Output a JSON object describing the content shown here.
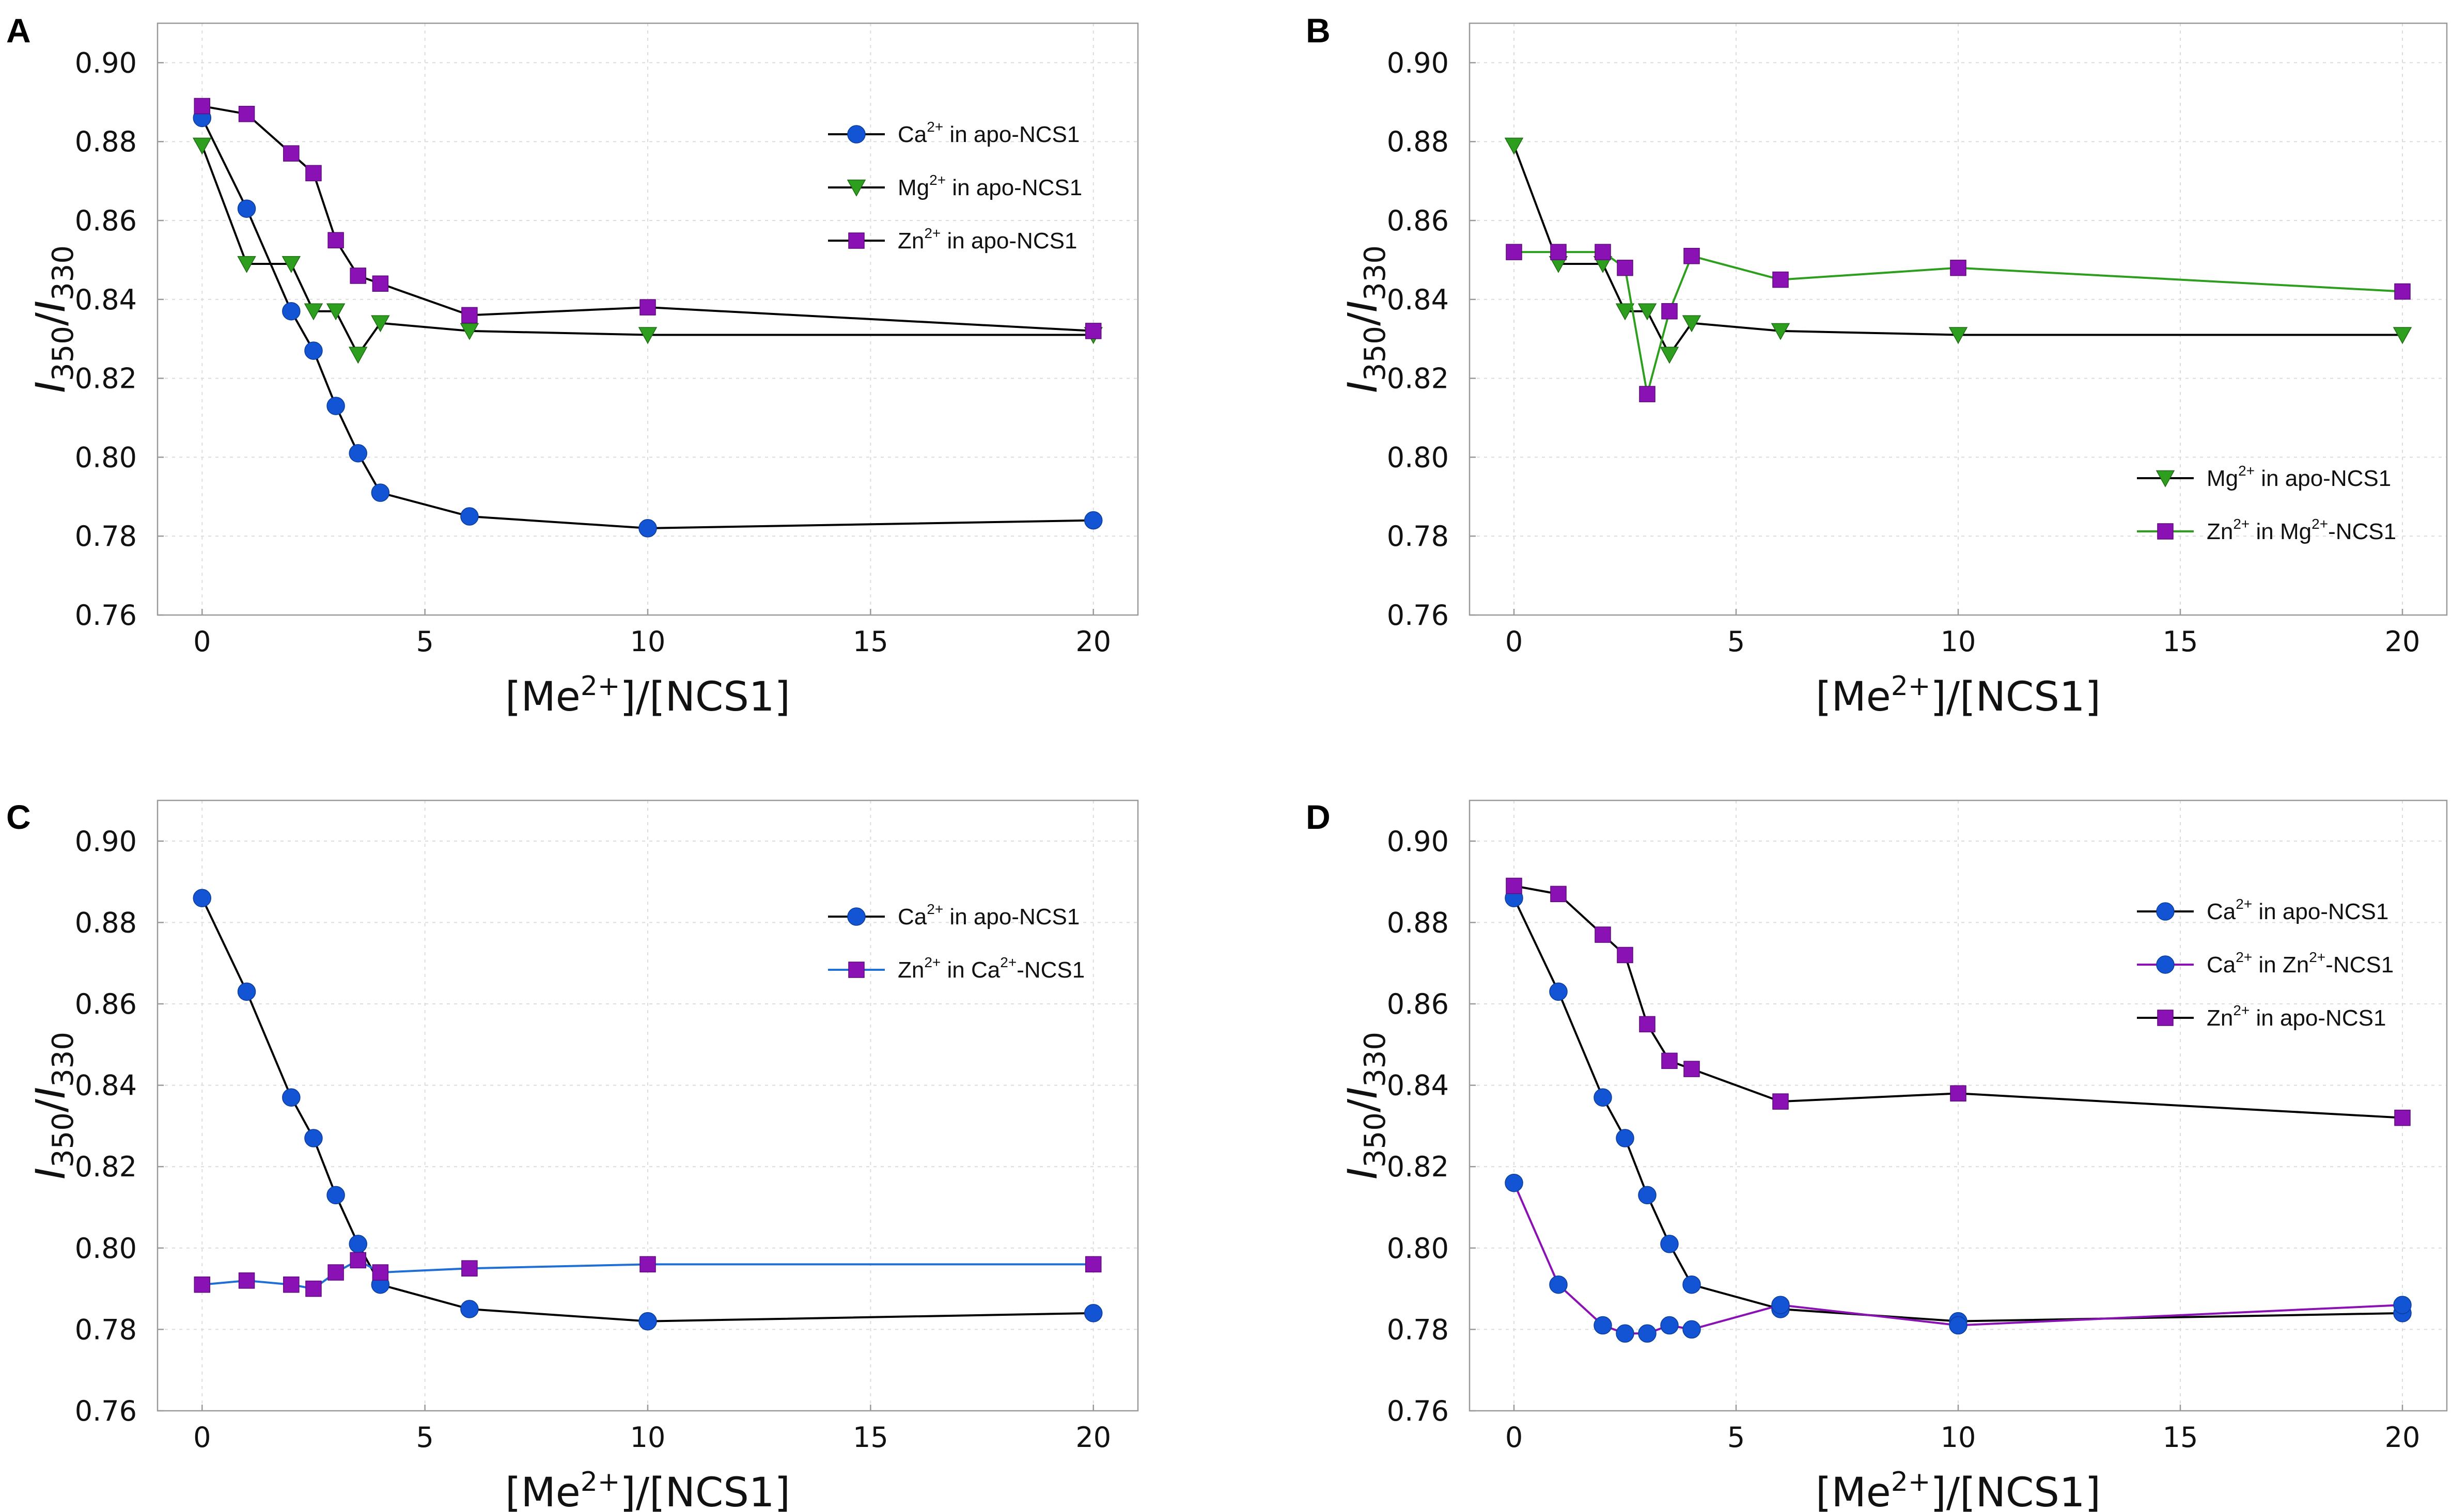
{
  "chart_data": [
    {
      "panel": "A",
      "type": "line",
      "xlabel": "[Me2+]/[NCS1]",
      "ylabel": "I350/I330",
      "xlim": [
        -1,
        21
      ],
      "ylim": [
        0.76,
        0.91
      ],
      "xticks": [
        0,
        5,
        10,
        15,
        20
      ],
      "yticks": [
        0.76,
        0.78,
        0.8,
        0.82,
        0.84,
        0.86,
        0.88,
        0.9
      ],
      "ytick_labels": [
        "0.76",
        "0.78",
        "0.80",
        "0.82",
        "0.84",
        "0.86",
        "0.88",
        "0.90"
      ],
      "legend_position": "top-right",
      "series": [
        {
          "name": "Ca2+ in apo-NCS1",
          "label_parts": [
            "Ca",
            "2+",
            " in apo-NCS1"
          ],
          "marker": "circle",
          "marker_color": "#1354d4",
          "line_color": "#000000",
          "x": [
            0,
            1,
            2,
            2.5,
            3,
            3.5,
            4,
            6,
            10,
            20
          ],
          "y": [
            0.886,
            0.863,
            0.837,
            0.827,
            0.813,
            0.801,
            0.791,
            0.785,
            0.782,
            0.784
          ]
        },
        {
          "name": "Mg2+ in apo-NCS1",
          "label_parts": [
            "Mg",
            "2+",
            " in apo-NCS1"
          ],
          "marker": "triangle-down",
          "marker_color": "#2e9e1f",
          "line_color": "#000000",
          "x": [
            0,
            1,
            2,
            2.5,
            3,
            3.5,
            4,
            6,
            10,
            20
          ],
          "y": [
            0.879,
            0.849,
            0.849,
            0.837,
            0.837,
            0.826,
            0.834,
            0.832,
            0.831,
            0.831
          ]
        },
        {
          "name": "Zn2+ in apo-NCS1",
          "label_parts": [
            "Zn",
            "2+",
            " in apo-NCS1"
          ],
          "marker": "square",
          "marker_color": "#8a12b5",
          "line_color": "#000000",
          "x": [
            0,
            1,
            2,
            2.5,
            3,
            3.5,
            4,
            6,
            10,
            20
          ],
          "y": [
            0.889,
            0.887,
            0.877,
            0.872,
            0.855,
            0.846,
            0.844,
            0.836,
            0.838,
            0.832
          ]
        }
      ]
    },
    {
      "panel": "B",
      "type": "line",
      "xlabel": "[Me2+]/[NCS1]",
      "ylabel": "I350/I330",
      "xlim": [
        -1,
        21
      ],
      "ylim": [
        0.76,
        0.91
      ],
      "xticks": [
        0,
        5,
        10,
        15,
        20
      ],
      "yticks": [
        0.76,
        0.78,
        0.8,
        0.82,
        0.84,
        0.86,
        0.88,
        0.9
      ],
      "ytick_labels": [
        "0.76",
        "0.78",
        "0.80",
        "0.82",
        "0.84",
        "0.86",
        "0.88",
        "0.90"
      ],
      "legend_position": "lower-right",
      "series": [
        {
          "name": "Mg2+ in apo-NCS1",
          "label_parts": [
            "Mg",
            "2+",
            " in apo-NCS1"
          ],
          "marker": "triangle-down",
          "marker_color": "#2e9e1f",
          "line_color": "#000000",
          "x": [
            0,
            1,
            2,
            2.5,
            3,
            3.5,
            4,
            6,
            10,
            20
          ],
          "y": [
            0.879,
            0.849,
            0.849,
            0.837,
            0.837,
            0.826,
            0.834,
            0.832,
            0.831,
            0.831
          ]
        },
        {
          "name": "Zn2+ in Mg2+-NCS1",
          "label_parts": [
            "Zn",
            "2+",
            " in Mg",
            "2+",
            "-NCS1"
          ],
          "marker": "square",
          "marker_color": "#8a12b5",
          "line_color": "#2e9e1f",
          "x": [
            0,
            1,
            2,
            2.5,
            3,
            3.5,
            4,
            6,
            10,
            20
          ],
          "y": [
            0.852,
            0.852,
            0.852,
            0.848,
            0.816,
            0.837,
            0.851,
            0.845,
            0.848,
            0.842
          ]
        }
      ]
    },
    {
      "panel": "C",
      "type": "line",
      "xlabel": "[Me2+]/[NCS1]",
      "ylabel": "I350/I330",
      "xlim": [
        -1,
        21
      ],
      "ylim": [
        0.76,
        0.91
      ],
      "xticks": [
        0,
        5,
        10,
        15,
        20
      ],
      "yticks": [
        0.76,
        0.78,
        0.8,
        0.82,
        0.84,
        0.86,
        0.88,
        0.9
      ],
      "ytick_labels": [
        "0.76",
        "0.78",
        "0.80",
        "0.82",
        "0.84",
        "0.86",
        "0.88",
        "0.90"
      ],
      "legend_position": "top-right",
      "series": [
        {
          "name": "Ca2+ in apo-NCS1",
          "label_parts": [
            "Ca",
            "2+",
            " in apo-NCS1"
          ],
          "marker": "circle",
          "marker_color": "#1354d4",
          "line_color": "#000000",
          "x": [
            0,
            1,
            2,
            2.5,
            3,
            3.5,
            4,
            6,
            10,
            20
          ],
          "y": [
            0.886,
            0.863,
            0.837,
            0.827,
            0.813,
            0.801,
            0.791,
            0.785,
            0.782,
            0.784
          ]
        },
        {
          "name": "Zn2+ in Ca2+-NCS1",
          "label_parts": [
            "Zn",
            "2+",
            " in Ca",
            "2+",
            "-NCS1"
          ],
          "marker": "square",
          "marker_color": "#8a12b5",
          "line_color": "#1f6fd6",
          "x": [
            0,
            1,
            2,
            2.5,
            3,
            3.5,
            4,
            6,
            10,
            20
          ],
          "y": [
            0.791,
            0.792,
            0.791,
            0.79,
            0.794,
            0.797,
            0.794,
            0.795,
            0.796,
            0.796
          ]
        }
      ]
    },
    {
      "panel": "D",
      "type": "line",
      "xlabel": "[Me2+]/[NCS1]",
      "ylabel": "I350/I330",
      "xlim": [
        -1,
        21
      ],
      "ylim": [
        0.76,
        0.91
      ],
      "xticks": [
        0,
        5,
        10,
        15,
        20
      ],
      "yticks": [
        0.76,
        0.78,
        0.8,
        0.82,
        0.84,
        0.86,
        0.88,
        0.9
      ],
      "ytick_labels": [
        "0.76",
        "0.78",
        "0.80",
        "0.82",
        "0.84",
        "0.86",
        "0.88",
        "0.90"
      ],
      "legend_position": "top-right",
      "series": [
        {
          "name": "Ca2+ in apo-NCS1",
          "label_parts": [
            "Ca",
            "2+",
            " in apo-NCS1"
          ],
          "marker": "circle",
          "marker_color": "#1354d4",
          "line_color": "#000000",
          "x": [
            0,
            1,
            2,
            2.5,
            3,
            3.5,
            4,
            6,
            10,
            20
          ],
          "y": [
            0.886,
            0.863,
            0.837,
            0.827,
            0.813,
            0.801,
            0.791,
            0.785,
            0.782,
            0.784
          ]
        },
        {
          "name": "Ca2+ in Zn2+-NCS1",
          "label_parts": [
            "Ca",
            "2+",
            " in Zn",
            "2+",
            "-NCS1"
          ],
          "marker": "circle",
          "marker_color": "#1354d4",
          "line_color": "#8a12b5",
          "x": [
            0,
            1,
            2,
            2.5,
            3,
            3.5,
            4,
            6,
            10,
            20
          ],
          "y": [
            0.816,
            0.791,
            0.781,
            0.779,
            0.779,
            0.781,
            0.78,
            0.786,
            0.781,
            0.786
          ]
        },
        {
          "name": "Zn2+ in apo-NCS1",
          "label_parts": [
            "Zn",
            "2+",
            " in apo-NCS1"
          ],
          "marker": "square",
          "marker_color": "#8a12b5",
          "line_color": "#000000",
          "x": [
            0,
            1,
            2,
            2.5,
            3,
            3.5,
            4,
            6,
            10,
            20
          ],
          "y": [
            0.889,
            0.887,
            0.877,
            0.872,
            0.855,
            0.846,
            0.844,
            0.836,
            0.838,
            0.832
          ]
        }
      ]
    }
  ]
}
